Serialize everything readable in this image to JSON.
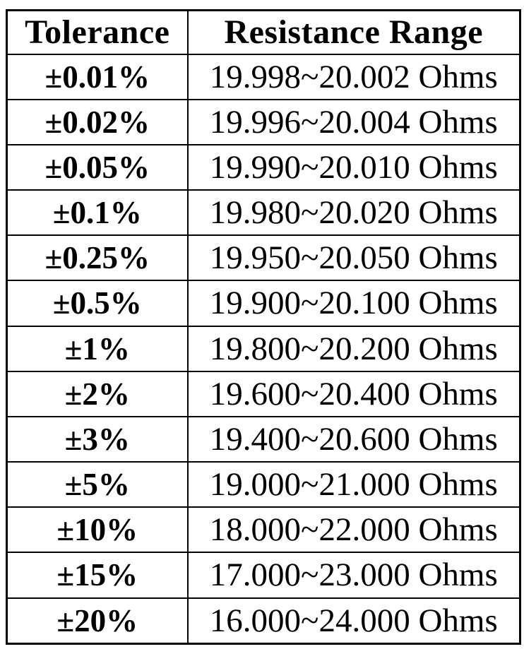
{
  "table": {
    "columns": [
      {
        "label": "Tolerance"
      },
      {
        "label": "Resistance Range"
      }
    ],
    "rows": [
      {
        "tolerance": "±0.01%",
        "range": "19.998~20.002 Ohms"
      },
      {
        "tolerance": "±0.02%",
        "range": "19.996~20.004 Ohms"
      },
      {
        "tolerance": "±0.05%",
        "range": "19.990~20.010 Ohms"
      },
      {
        "tolerance": "±0.1%",
        "range": "19.980~20.020 Ohms"
      },
      {
        "tolerance": "±0.25%",
        "range": "19.950~20.050 Ohms"
      },
      {
        "tolerance": "±0.5%",
        "range": "19.900~20.100 Ohms"
      },
      {
        "tolerance": "±1%",
        "range": "19.800~20.200 Ohms"
      },
      {
        "tolerance": "±2%",
        "range": "19.600~20.400 Ohms"
      },
      {
        "tolerance": "±3%",
        "range": "19.400~20.600 Ohms"
      },
      {
        "tolerance": "±5%",
        "range": "19.000~21.000 Ohms"
      },
      {
        "tolerance": "±10%",
        "range": "18.000~22.000 Ohms"
      },
      {
        "tolerance": "±15%",
        "range": "17.000~23.000 Ohms"
      },
      {
        "tolerance": "±20%",
        "range": "16.000~24.000 Ohms"
      }
    ],
    "colors": {
      "border": "#000000",
      "text": "#000000",
      "background": "#ffffff"
    }
  }
}
